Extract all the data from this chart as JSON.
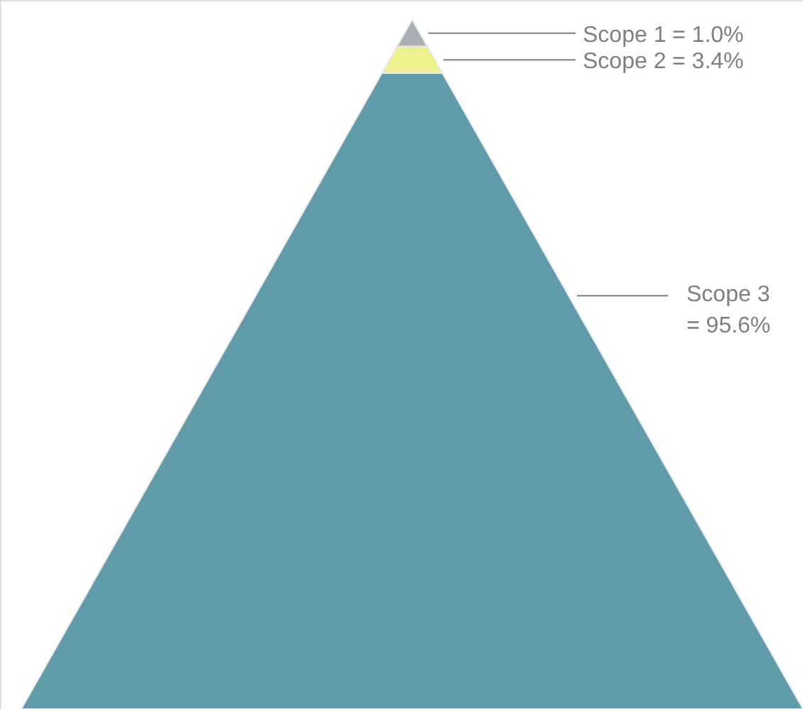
{
  "chart_data": {
    "type": "other",
    "categories": [
      "Scope 1",
      "Scope 2",
      "Scope 3"
    ],
    "values": [
      1.0,
      3.4,
      95.6
    ],
    "value_labels": [
      "= 1.0%",
      "= 3.4%",
      "= 95.6%"
    ],
    "colors": [
      "#a8aeb3",
      "#eef08c",
      "#5f9ba8"
    ]
  }
}
